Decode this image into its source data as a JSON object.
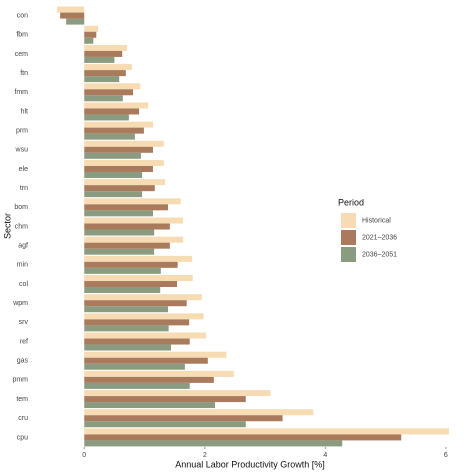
{
  "chart_data": {
    "type": "bar",
    "orientation": "horizontal",
    "x_label": "Annual Labor Productivity Growth [%]",
    "y_label": "Sector",
    "legend_title": "Period",
    "categories": [
      "con",
      "fbm",
      "cem",
      "ftn",
      "fmm",
      "hlt",
      "prm",
      "wsu",
      "ele",
      "trn",
      "bom",
      "chm",
      "agf",
      "min",
      "col",
      "wpm",
      "srv",
      "ref",
      "gas",
      "pmm",
      "tem",
      "cru",
      "cpu"
    ],
    "series": [
      {
        "name": "Historical",
        "color": "#f6dbb3",
        "values": [
          -0.45,
          0.23,
          0.71,
          0.79,
          0.93,
          1.06,
          1.14,
          1.32,
          1.32,
          1.34,
          1.6,
          1.64,
          1.64,
          1.79,
          1.8,
          1.95,
          1.98,
          2.02,
          2.36,
          2.48,
          3.09,
          3.8,
          6.05
        ]
      },
      {
        "name": "2021–2036",
        "color": "#a97b5c",
        "values": [
          -0.4,
          0.2,
          0.63,
          0.69,
          0.81,
          0.91,
          0.99,
          1.14,
          1.14,
          1.17,
          1.39,
          1.42,
          1.42,
          1.55,
          1.54,
          1.7,
          1.74,
          1.75,
          2.05,
          2.15,
          2.68,
          3.29,
          5.26
        ]
      },
      {
        "name": "2036–2051",
        "color": "#8b9b80",
        "values": [
          -0.3,
          0.15,
          0.5,
          0.58,
          0.64,
          0.74,
          0.84,
          0.94,
          0.96,
          0.96,
          1.14,
          1.16,
          1.16,
          1.27,
          1.26,
          1.39,
          1.4,
          1.44,
          1.67,
          1.75,
          2.17,
          2.68,
          4.28
        ]
      }
    ],
    "xlim": [
      -0.9,
      6.4
    ],
    "xticks": [
      0,
      2,
      4,
      6
    ],
    "legend_position": "right",
    "grid": false
  }
}
